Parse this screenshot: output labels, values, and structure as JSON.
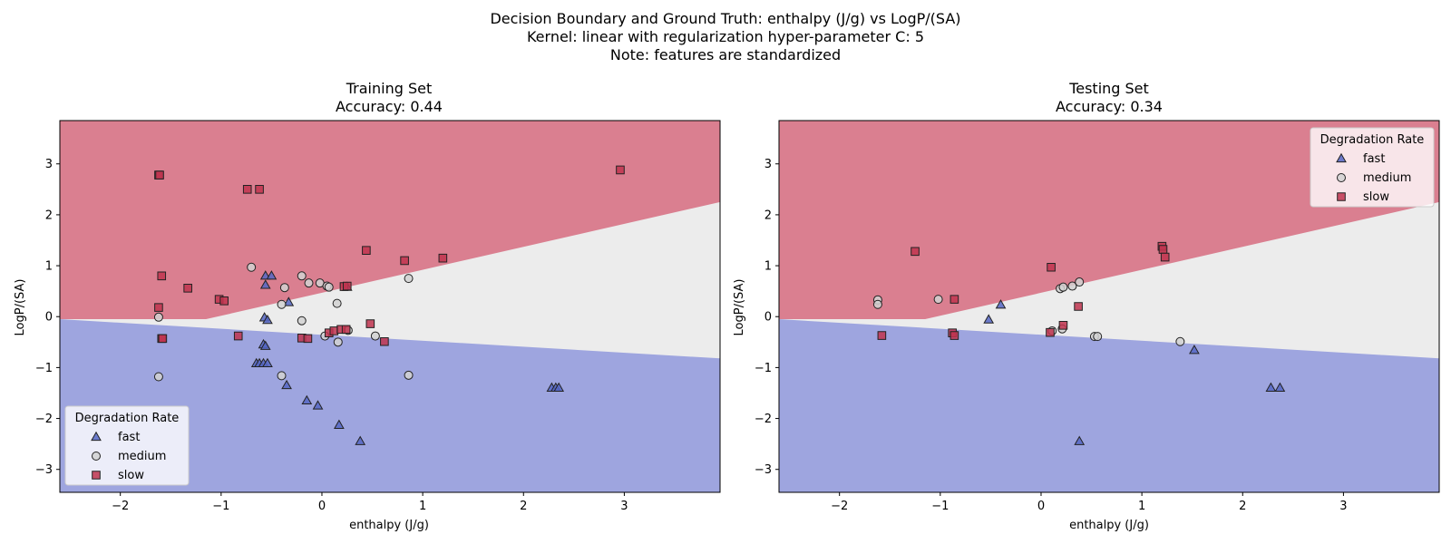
{
  "figure": {
    "title_lines": [
      "Decision Boundary and Ground Truth: enthalpy (J/g) vs LogP/(SA)",
      "Kernel: linear with regularization hyper-parameter C: 5",
      "Note: features are standardized"
    ]
  },
  "colors": {
    "fast_region": "#9ea5df",
    "medium_region": "#ececec",
    "slow_region": "#da7f90",
    "fast_marker": "#5566c4",
    "medium_marker": "#d2d2d2",
    "slow_marker": "#c0344f",
    "marker_edge": "#222222"
  },
  "chart_data": [
    {
      "type": "scatter",
      "panel": "left",
      "title": "Training Set",
      "subtitle": "Accuracy: 0.44",
      "xlabel": "enthalpy (J/g)",
      "ylabel": "LogP/(SA)",
      "xlim": [
        -2.6,
        3.95
      ],
      "ylim": [
        -3.45,
        3.85
      ],
      "xticks": [
        -2,
        -1,
        0,
        1,
        2,
        3
      ],
      "yticks": [
        -3,
        -2,
        -1,
        0,
        1,
        2,
        3
      ],
      "legend_title": "Degradation Rate",
      "legend_position": "lower-left",
      "decision_regions": {
        "fast_medium_boundary": [
          [
            -2.6,
            -0.05
          ],
          [
            3.95,
            -0.82
          ]
        ],
        "medium_slow_boundary": [
          [
            -2.6,
            -0.05
          ],
          [
            -1.15,
            -0.05
          ],
          [
            3.95,
            2.25
          ]
        ],
        "regions": [
          "slow",
          "medium",
          "fast"
        ]
      },
      "series": [
        {
          "name": "fast",
          "marker": "triangle",
          "points": [
            [
              -0.56,
              0.8
            ],
            [
              -0.5,
              0.8
            ],
            [
              -0.56,
              0.62
            ],
            [
              -0.33,
              0.28
            ],
            [
              0.25,
              0.58
            ],
            [
              -0.57,
              -0.02
            ],
            [
              -0.54,
              -0.07
            ],
            [
              -0.58,
              -0.55
            ],
            [
              -0.56,
              -0.58
            ],
            [
              -0.65,
              -0.92
            ],
            [
              -0.62,
              -0.92
            ],
            [
              -0.58,
              -0.92
            ],
            [
              -0.54,
              -0.92
            ],
            [
              -0.35,
              -1.35
            ],
            [
              -0.15,
              -1.65
            ],
            [
              -0.04,
              -1.75
            ],
            [
              0.17,
              -2.13
            ],
            [
              0.38,
              -2.45
            ],
            [
              2.28,
              -1.4
            ],
            [
              2.32,
              -1.4
            ],
            [
              2.35,
              -1.4
            ]
          ]
        },
        {
          "name": "medium",
          "marker": "circle",
          "points": [
            [
              -0.7,
              0.97
            ],
            [
              -0.37,
              0.57
            ],
            [
              -0.2,
              0.8
            ],
            [
              -0.13,
              0.66
            ],
            [
              -0.02,
              0.66
            ],
            [
              0.05,
              0.6
            ],
            [
              0.07,
              0.58
            ],
            [
              0.86,
              0.75
            ],
            [
              -0.4,
              0.24
            ],
            [
              0.15,
              0.26
            ],
            [
              -0.2,
              -0.08
            ],
            [
              0.03,
              -0.38
            ],
            [
              0.16,
              -0.5
            ],
            [
              0.26,
              -0.27
            ],
            [
              0.53,
              -0.38
            ],
            [
              0.86,
              -1.15
            ],
            [
              -0.4,
              -1.16
            ],
            [
              -1.62,
              -0.01
            ],
            [
              -1.62,
              -1.18
            ]
          ]
        },
        {
          "name": "slow",
          "marker": "square",
          "points": [
            [
              -1.62,
              2.78
            ],
            [
              -1.61,
              2.78
            ],
            [
              -0.74,
              2.5
            ],
            [
              -0.62,
              2.5
            ],
            [
              2.96,
              2.88
            ],
            [
              -1.59,
              0.8
            ],
            [
              -1.33,
              0.56
            ],
            [
              -1.02,
              0.34
            ],
            [
              -0.97,
              0.31
            ],
            [
              -1.62,
              0.18
            ],
            [
              -1.59,
              -0.43
            ],
            [
              -1.58,
              -0.43
            ],
            [
              -0.83,
              -0.38
            ],
            [
              -0.2,
              -0.42
            ],
            [
              -0.14,
              -0.43
            ],
            [
              0.07,
              -0.32
            ],
            [
              0.12,
              -0.28
            ],
            [
              0.19,
              -0.25
            ],
            [
              0.24,
              -0.25
            ],
            [
              0.48,
              -0.14
            ],
            [
              0.62,
              -0.49
            ],
            [
              0.22,
              0.59
            ],
            [
              0.25,
              0.6
            ],
            [
              0.44,
              1.3
            ],
            [
              0.82,
              1.1
            ],
            [
              1.2,
              1.15
            ]
          ]
        }
      ]
    },
    {
      "type": "scatter",
      "panel": "right",
      "title": "Testing Set",
      "subtitle": "Accuracy: 0.34",
      "xlabel": "enthalpy (J/g)",
      "ylabel": "LogP/(SA)",
      "xlim": [
        -2.6,
        3.95
      ],
      "ylim": [
        -3.45,
        3.85
      ],
      "xticks": [
        -2,
        -1,
        0,
        1,
        2,
        3
      ],
      "yticks": [
        -3,
        -2,
        -1,
        0,
        1,
        2,
        3
      ],
      "legend_title": "Degradation Rate",
      "legend_position": "upper-right",
      "decision_regions": {
        "fast_medium_boundary": [
          [
            -2.6,
            -0.05
          ],
          [
            3.95,
            -0.82
          ]
        ],
        "medium_slow_boundary": [
          [
            -2.6,
            -0.05
          ],
          [
            -1.15,
            -0.05
          ],
          [
            3.95,
            2.25
          ]
        ],
        "regions": [
          "slow",
          "medium",
          "fast"
        ]
      },
      "series": [
        {
          "name": "fast",
          "marker": "triangle",
          "points": [
            [
              -0.4,
              0.23
            ],
            [
              -0.52,
              -0.06
            ],
            [
              1.52,
              -0.66
            ],
            [
              2.28,
              -1.4
            ],
            [
              2.37,
              -1.4
            ],
            [
              0.38,
              -2.45
            ]
          ]
        },
        {
          "name": "medium",
          "marker": "circle",
          "points": [
            [
              -1.62,
              0.33
            ],
            [
              -1.62,
              0.24
            ],
            [
              -1.02,
              0.34
            ],
            [
              0.19,
              0.55
            ],
            [
              0.22,
              0.58
            ],
            [
              0.31,
              0.6
            ],
            [
              0.38,
              0.68
            ],
            [
              0.11,
              -0.28
            ],
            [
              0.21,
              -0.24
            ],
            [
              0.53,
              -0.39
            ],
            [
              0.56,
              -0.39
            ],
            [
              1.38,
              -0.49
            ]
          ]
        },
        {
          "name": "slow",
          "marker": "square",
          "points": [
            [
              -1.25,
              1.28
            ],
            [
              -0.86,
              0.34
            ],
            [
              -1.58,
              -0.37
            ],
            [
              -0.88,
              -0.32
            ],
            [
              -0.86,
              -0.37
            ],
            [
              0.1,
              0.97
            ],
            [
              1.2,
              1.38
            ],
            [
              1.21,
              1.32
            ],
            [
              1.23,
              1.17
            ],
            [
              0.37,
              0.2
            ],
            [
              0.22,
              -0.17
            ],
            [
              0.09,
              -0.31
            ]
          ]
        }
      ]
    }
  ]
}
